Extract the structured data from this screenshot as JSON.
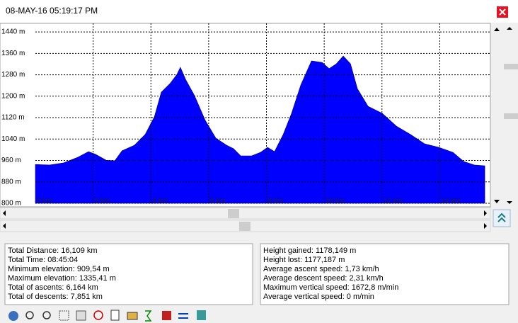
{
  "window_title": "08-MAY-16 05:19:17 PM",
  "chart_data": {
    "type": "area",
    "color": "#0000ff",
    "grid": true,
    "x": [
      0,
      0.49,
      0.98,
      1.47,
      1.84,
      2.08,
      2.45,
      2.75,
      3.0,
      3.43,
      3.8,
      4.12,
      4.36,
      4.66,
      4.9,
      5.02,
      5.2,
      5.51,
      5.88,
      6.25,
      6.62,
      6.86,
      7.11,
      7.48,
      7.79,
      8.04,
      8.28,
      8.58,
      8.87,
      9.19,
      9.56,
      9.93,
      10.17,
      10.42,
      10.66,
      10.91,
      11.15,
      11.52,
      12.01,
      12.5,
      12.99,
      13.48,
      13.97,
      14.46,
      14.83,
      15.2,
      15.56
    ],
    "values": [
      945,
      943,
      951,
      972,
      993,
      983,
      961,
      959,
      996,
      1017,
      1057,
      1123,
      1215,
      1247,
      1281,
      1308,
      1263,
      1202,
      1110,
      1043,
      1017,
      1004,
      977,
      977,
      990,
      1009,
      993,
      1057,
      1136,
      1242,
      1332,
      1326,
      1303,
      1321,
      1350,
      1321,
      1228,
      1162,
      1136,
      1088,
      1057,
      1022,
      1009,
      990,
      956,
      943,
      940
    ],
    "xlim": [
      0,
      15.73
    ],
    "ylim": [
      800,
      1472
    ],
    "xticks": [
      {
        "value": 0,
        "label": "0 km"
      },
      {
        "value": 2,
        "label": "2 km"
      },
      {
        "value": 4,
        "label": "4 km"
      },
      {
        "value": 6,
        "label": "6 km"
      },
      {
        "value": 8,
        "label": "8 km"
      },
      {
        "value": 10,
        "label": "10 km"
      },
      {
        "value": 12,
        "label": "12 km"
      },
      {
        "value": 14,
        "label": "14 km"
      }
    ],
    "yticks": [
      {
        "value": 800,
        "label": "800 m"
      },
      {
        "value": 880,
        "label": "880 m"
      },
      {
        "value": 960,
        "label": "960 m"
      },
      {
        "value": 1040,
        "label": "1040 m"
      },
      {
        "value": 1120,
        "label": "1120 m"
      },
      {
        "value": 1200,
        "label": "1200 m"
      },
      {
        "value": 1280,
        "label": "1280 m"
      },
      {
        "value": 1360,
        "label": "1360 m"
      },
      {
        "value": 1440,
        "label": "1440 m"
      }
    ]
  },
  "stats": {
    "left": [
      "Total Distance: 16,109 km",
      "Total Time: 08:45:04",
      "Minimum elevation: 909,54 m",
      "Maximum elevation: 1335,41 m",
      "Total of ascents: 6,164 km",
      "Total of descents: 7,851 km"
    ],
    "right": [
      "Height gained: 1178,149 m",
      "Height lost: 1177,187 m",
      "Average ascent speed: 1,73 km/h",
      "Average descent speed: 2,31 km/h",
      "Maximum vertical speed: 1672,8 m/min",
      "Average vertical speed: 0 m/min"
    ]
  }
}
